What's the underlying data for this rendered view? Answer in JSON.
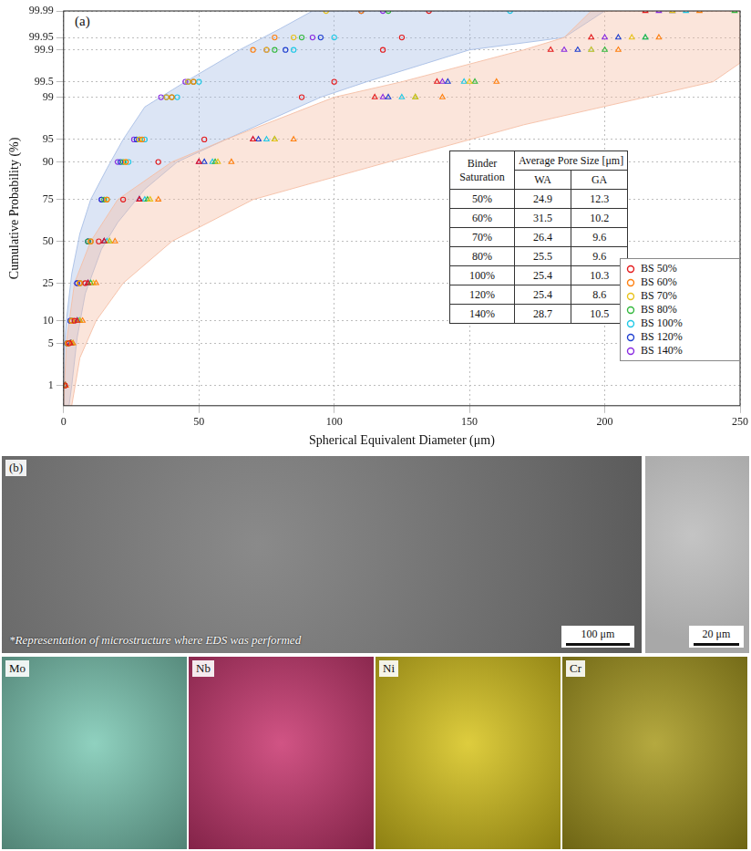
{
  "chart_data": {
    "type": "scatter",
    "panel_label": "(a)",
    "x_label": "Spherical Equivalent Diameter (μm)",
    "y_label": "Cumulative Probability (%)",
    "y_scale": "probability",
    "xlim": [
      0,
      250
    ],
    "xticks": [
      0,
      50,
      100,
      150,
      200,
      250
    ],
    "ylim": [
      0.4,
      99.99
    ],
    "yticks": [
      1,
      5,
      10,
      25,
      50,
      75,
      90,
      95,
      99,
      99.5,
      99.9,
      99.95,
      99.99
    ],
    "grid": true,
    "legend": "right",
    "series": [
      {
        "name": "BS 50%",
        "color": "#e41a1c",
        "marker": "circle",
        "x": [
          0.5,
          2,
          4,
          8,
          13,
          22,
          35,
          52,
          88,
          100,
          118,
          125,
          135
        ],
        "values": [
          1,
          5,
          10,
          25,
          50,
          75,
          90,
          95,
          99,
          99.5,
          99.9,
          99.95,
          99.99
        ]
      },
      {
        "name": "BS 60%",
        "color": "#ff7f0e",
        "marker": "circle",
        "x": [
          0.4,
          1.5,
          3,
          6,
          10,
          16,
          23,
          29,
          40,
          48,
          70,
          78,
          110
        ],
        "values": [
          1,
          5,
          10,
          25,
          50,
          75,
          90,
          95,
          99,
          99.5,
          99.9,
          99.95,
          99.99
        ]
      },
      {
        "name": "BS 70%",
        "color": "#e8c21a",
        "marker": "circle",
        "x": [
          0.4,
          1.5,
          3,
          6,
          10,
          16,
          23,
          28,
          38,
          46,
          75,
          85,
          97
        ],
        "values": [
          1,
          5,
          10,
          25,
          50,
          75,
          90,
          95,
          99,
          99.5,
          99.9,
          99.95,
          99.99
        ]
      },
      {
        "name": "BS 80%",
        "color": "#33b83d",
        "marker": "circle",
        "x": [
          0.4,
          1.4,
          3,
          6,
          9,
          15,
          22,
          28,
          40,
          48,
          78,
          88,
          120
        ],
        "values": [
          1,
          5,
          10,
          25,
          50,
          75,
          90,
          95,
          99,
          99.5,
          99.9,
          99.95,
          99.99
        ]
      },
      {
        "name": "BS 100%",
        "color": "#1ec8e6",
        "marker": "circle",
        "x": [
          0.4,
          1.5,
          3,
          6,
          10,
          16,
          24,
          30,
          42,
          50,
          85,
          100,
          165
        ],
        "values": [
          1,
          5,
          10,
          25,
          50,
          75,
          90,
          95,
          99,
          99.5,
          99.9,
          99.95,
          99.99
        ]
      },
      {
        "name": "BS 120%",
        "color": "#1f3fd0",
        "marker": "circle",
        "x": [
          0.3,
          1.3,
          2.5,
          5,
          9,
          14,
          21,
          27,
          38,
          46,
          82,
          95,
          110
        ],
        "values": [
          1,
          5,
          10,
          25,
          50,
          75,
          90,
          95,
          99,
          99.5,
          99.9,
          99.95,
          99.99
        ]
      },
      {
        "name": "BS 140%",
        "color": "#8a2be2",
        "marker": "circle",
        "x": [
          0.3,
          1.3,
          2.5,
          5,
          9,
          14,
          20,
          26,
          36,
          45,
          75,
          92,
          118
        ],
        "values": [
          1,
          5,
          10,
          25,
          50,
          75,
          90,
          95,
          99,
          99.5,
          99.9,
          99.95,
          99.99
        ]
      },
      {
        "name": "BS 50%",
        "color": "#e41a1c",
        "marker": "triangle",
        "x": [
          0.5,
          2.5,
          5,
          9,
          15,
          28,
          50,
          70,
          115,
          138,
          180,
          195,
          215
        ],
        "values": [
          1,
          5,
          10,
          25,
          50,
          75,
          90,
          95,
          99,
          99.5,
          99.9,
          99.95,
          99.99
        ]
      },
      {
        "name": "BS 60%",
        "color": "#ff7f0e",
        "marker": "triangle",
        "x": [
          0.8,
          3.5,
          7,
          12,
          19,
          35,
          62,
          85,
          140,
          160,
          205,
          220,
          235
        ],
        "values": [
          1,
          5,
          10,
          25,
          50,
          75,
          90,
          95,
          99,
          99.5,
          99.9,
          99.95,
          99.99
        ]
      },
      {
        "name": "BS 70%",
        "color": "#e8c21a",
        "marker": "triangle",
        "x": [
          0.7,
          3,
          6,
          11,
          17,
          32,
          57,
          78,
          130,
          150,
          195,
          210,
          225
        ],
        "values": [
          1,
          5,
          10,
          25,
          50,
          75,
          90,
          95,
          99,
          99.5,
          99.9,
          99.95,
          99.99
        ]
      },
      {
        "name": "BS 80%",
        "color": "#33b83d",
        "marker": "triangle",
        "x": [
          0.6,
          3,
          6,
          10,
          17,
          31,
          56,
          78,
          130,
          152,
          200,
          215,
          248
        ],
        "values": [
          1,
          5,
          10,
          25,
          50,
          75,
          90,
          95,
          99,
          99.5,
          99.9,
          99.95,
          99.99
        ]
      },
      {
        "name": "BS 100%",
        "color": "#1ec8e6",
        "marker": "triangle",
        "x": [
          0.6,
          2.8,
          5.5,
          10,
          16,
          30,
          55,
          75,
          125,
          148,
          195,
          215,
          230
        ],
        "values": [
          1,
          5,
          10,
          25,
          50,
          75,
          90,
          95,
          99,
          99.5,
          99.9,
          99.95,
          99.99
        ]
      },
      {
        "name": "BS 120%",
        "color": "#1f3fd0",
        "marker": "triangle",
        "x": [
          0.5,
          2.5,
          5,
          9,
          15,
          28,
          52,
          72,
          120,
          142,
          190,
          205,
          225
        ],
        "values": [
          1,
          5,
          10,
          25,
          50,
          75,
          90,
          95,
          99,
          99.5,
          99.9,
          99.95,
          99.99
        ]
      },
      {
        "name": "BS 140%",
        "color": "#8a2be2",
        "marker": "triangle",
        "x": [
          0.5,
          2.5,
          5,
          9,
          15,
          28,
          50,
          70,
          118,
          140,
          185,
          200,
          220
        ],
        "values": [
          1,
          5,
          10,
          25,
          50,
          75,
          90,
          95,
          99,
          99.5,
          99.9,
          99.95,
          99.99
        ]
      }
    ],
    "bands": [
      {
        "color": "#a8bfe6",
        "x": [
          0,
          0,
          1,
          3,
          6,
          10,
          16,
          22,
          30,
          45,
          65,
          80,
          92,
          200,
          185,
          150,
          112,
          95,
          60,
          42,
          30,
          20,
          14,
          8,
          5,
          3,
          2
        ],
        "values": [
          0.4,
          3,
          10,
          30,
          55,
          75,
          88,
          95,
          98.5,
          99.5,
          99.9,
          99.97,
          99.99,
          99.99,
          99.95,
          99.9,
          99.5,
          99,
          95,
          90,
          80,
          62,
          45,
          20,
          6,
          1,
          0.4
        ]
      },
      {
        "color": "#f5bfa5",
        "x": [
          0,
          1,
          4,
          10,
          20,
          40,
          60,
          100,
          125,
          170,
          185,
          195,
          250,
          250,
          240,
          215,
          170,
          120,
          70,
          40,
          22,
          12,
          6,
          3
        ],
        "values": [
          0.4,
          5,
          25,
          50,
          75,
          90,
          95,
          99,
          99.5,
          99.9,
          99.95,
          99.99,
          99.99,
          99.8,
          99.5,
          99,
          97,
          90,
          75,
          50,
          25,
          10,
          3,
          0.4
        ]
      }
    ],
    "table": {
      "header": [
        "Binder Saturation",
        "Average Pore Size [μm]"
      ],
      "subheader": [
        "WA",
        "GA"
      ],
      "rows": [
        [
          "50%",
          24.9,
          12.3
        ],
        [
          "60%",
          31.5,
          10.2
        ],
        [
          "70%",
          26.4,
          9.6
        ],
        [
          "80%",
          25.5,
          9.6
        ],
        [
          "100%",
          25.4,
          10.3
        ],
        [
          "120%",
          25.4,
          8.6
        ],
        [
          "140%",
          28.7,
          10.5
        ]
      ]
    }
  },
  "micrographs": {
    "panel_label": "(b)",
    "caption": "*Representation of microstructure where EDS was performed",
    "overview_scale": "100 μm",
    "detail_scale": "20 μm",
    "maps": [
      {
        "element": "Mo",
        "color": "#7cc9b4"
      },
      {
        "element": "Nb",
        "color": "#c9366f"
      },
      {
        "element": "Ni",
        "color": "#d8c41c"
      },
      {
        "element": "Cr",
        "color": "#a89a1e"
      }
    ]
  }
}
